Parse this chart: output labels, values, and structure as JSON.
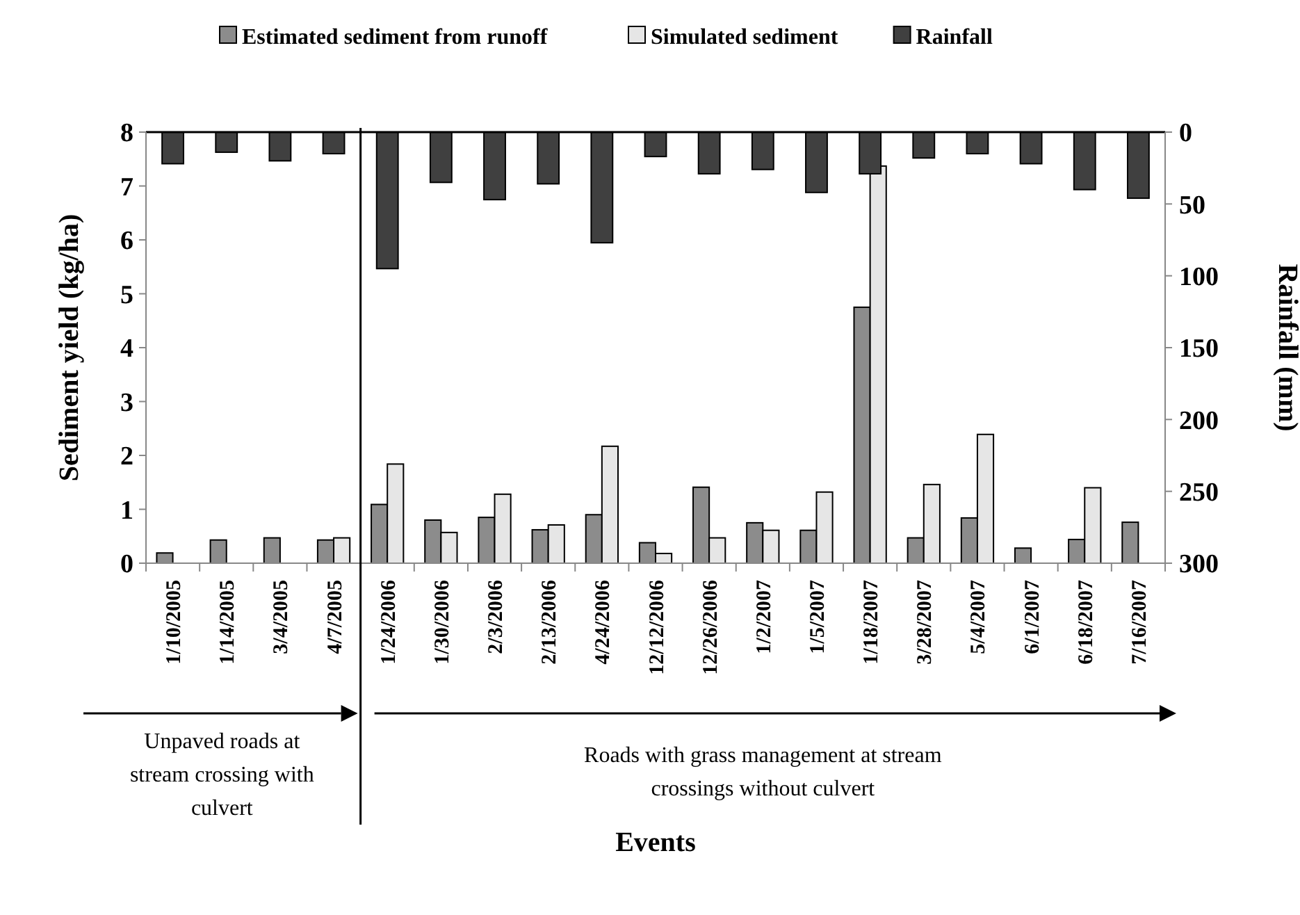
{
  "chart_data": {
    "type": "bar",
    "ylabel": "Sediment yield (kg/ha)",
    "y2label": "Rainfall (mm)",
    "categories": [
      "1/10/2005",
      "1/14/2005",
      "3/4/2005",
      "4/7/2005",
      "1/24/2006",
      "1/30/2006",
      "2/3/2006",
      "2/13/2006",
      "4/24/2006",
      "12/12/2006",
      "12/26/2006",
      "1/2/2007",
      "1/5/2007",
      "1/18/2007",
      "3/28/2007",
      "5/4/2007",
      "6/1/2007",
      "6/18/2007",
      "7/16/2007"
    ],
    "series": [
      {
        "name": "Estimated sediment from runoff",
        "color": "#8c8c8c",
        "values": [
          0.19,
          0.43,
          0.47,
          0.43,
          1.09,
          0.8,
          0.85,
          0.62,
          0.9,
          0.38,
          1.41,
          0.75,
          0.61,
          4.75,
          0.47,
          0.84,
          0.28,
          0.44,
          0.76
        ]
      },
      {
        "name": "Simulated sediment",
        "color": "#e6e6e6",
        "values": [
          null,
          null,
          null,
          0.47,
          1.84,
          0.57,
          1.28,
          0.71,
          2.17,
          0.18,
          0.47,
          0.61,
          1.32,
          7.37,
          1.46,
          2.39,
          null,
          1.4,
          null
        ]
      },
      {
        "name": "Rainfall",
        "color": "#404040",
        "axis": "y2",
        "values": [
          22,
          14,
          20,
          15,
          95,
          35,
          47,
          36,
          77,
          17,
          29,
          26,
          42,
          29,
          18,
          15,
          22,
          40,
          46
        ]
      }
    ],
    "ylim": [
      0,
      8
    ],
    "yticks": [
      0,
      1,
      2,
      3,
      4,
      5,
      6,
      7,
      8
    ],
    "y2lim": [
      300,
      0
    ],
    "y2ticks": [
      0,
      50,
      100,
      150,
      200,
      250,
      300
    ],
    "annotations": [
      "Unpaved roads at stream crossing with culvert",
      "Roads with grass management at stream crossings without culvert",
      "Events"
    ],
    "legend": "top",
    "grid": false
  }
}
